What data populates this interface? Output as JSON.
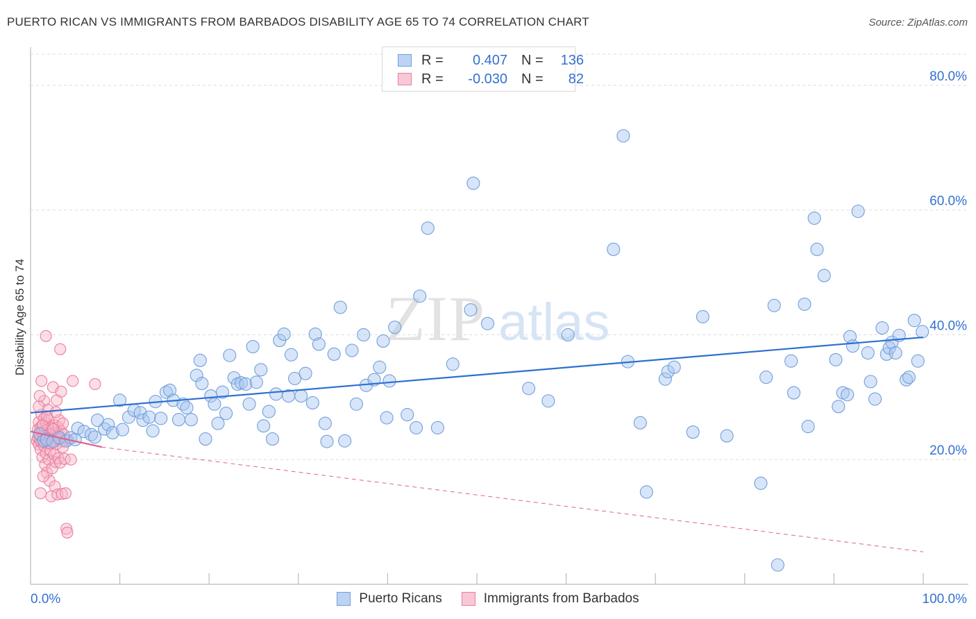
{
  "title": "PUERTO RICAN VS IMMIGRANTS FROM BARBADOS DISABILITY AGE 65 TO 74 CORRELATION CHART",
  "source": "Source: ZipAtlas.com",
  "watermark": {
    "zip": "ZIP",
    "atlas": "atlas"
  },
  "legend": {
    "r_label": "R =",
    "n_label": "N =",
    "rows": [
      {
        "r": "0.407",
        "n": "136"
      },
      {
        "r": "-0.030",
        "n": "82"
      }
    ]
  },
  "bottom_legend": [
    "Puerto Ricans",
    "Immigrants from Barbados"
  ],
  "colors": {
    "blue_fill": "#a8c6f0",
    "blue_stroke": "#6f9fdc",
    "blue_line": "#2d6fd0",
    "pink_fill": "#f6b6c8",
    "pink_stroke": "#ea7fa0",
    "pink_line": "#e2628a",
    "axis_label": "#3370d0",
    "grid": "#dcdcdc"
  },
  "chart_data": {
    "type": "scatter",
    "title": "PUERTO RICAN VS IMMIGRANTS FROM BARBADOS DISABILITY AGE 65 TO 74 CORRELATION CHART",
    "xlabel": "",
    "ylabel": "Disability Age 65 to 74",
    "xlim": [
      0,
      100
    ],
    "ylim": [
      0,
      85
    ],
    "x_tick_labels": [
      "0.0%",
      "100.0%"
    ],
    "y_ticks": [
      20,
      40,
      60,
      80
    ],
    "y_tick_labels": [
      "20.0%",
      "40.0%",
      "60.0%",
      "80.0%"
    ],
    "grid": true,
    "legend_position": "top-center",
    "series": [
      {
        "name": "Puerto Ricans",
        "color": "#a8c6f0",
        "trend": {
          "x": [
            0,
            100
          ],
          "y": [
            27.5,
            39.6
          ],
          "style": "solid"
        },
        "points": [
          [
            1.0,
            24.1
          ],
          [
            1.5,
            23.0
          ],
          [
            1.8,
            23.2
          ],
          [
            2.5,
            22.9
          ],
          [
            3.2,
            23.5
          ],
          [
            4.0,
            23.0
          ],
          [
            4.5,
            23.5
          ],
          [
            5.0,
            23.2
          ],
          [
            5.3,
            25.0
          ],
          [
            6.0,
            24.5
          ],
          [
            6.8,
            24.0
          ],
          [
            7.2,
            23.6
          ],
          [
            7.5,
            26.3
          ],
          [
            8.3,
            24.9
          ],
          [
            8.7,
            25.6
          ],
          [
            9.2,
            24.3
          ],
          [
            10.0,
            29.5
          ],
          [
            10.3,
            24.8
          ],
          [
            11.0,
            26.8
          ],
          [
            11.6,
            27.9
          ],
          [
            12.3,
            27.5
          ],
          [
            12.6,
            26.3
          ],
          [
            13.3,
            26.8
          ],
          [
            13.7,
            24.6
          ],
          [
            14.0,
            29.3
          ],
          [
            14.6,
            26.6
          ],
          [
            15.2,
            30.8
          ],
          [
            15.6,
            31.1
          ],
          [
            16.0,
            29.5
          ],
          [
            16.6,
            26.4
          ],
          [
            17.1,
            28.9
          ],
          [
            17.5,
            28.3
          ],
          [
            18.0,
            26.4
          ],
          [
            18.6,
            33.5
          ],
          [
            19.0,
            35.9
          ],
          [
            19.2,
            32.2
          ],
          [
            19.6,
            23.3
          ],
          [
            20.2,
            30.2
          ],
          [
            20.6,
            28.9
          ],
          [
            21.0,
            25.8
          ],
          [
            21.5,
            30.8
          ],
          [
            21.9,
            27.4
          ],
          [
            22.3,
            36.7
          ],
          [
            22.8,
            33.1
          ],
          [
            23.2,
            32.1
          ],
          [
            23.6,
            32.3
          ],
          [
            24.1,
            32.1
          ],
          [
            24.5,
            28.9
          ],
          [
            24.9,
            38.1
          ],
          [
            25.3,
            32.4
          ],
          [
            25.8,
            34.4
          ],
          [
            26.1,
            25.4
          ],
          [
            26.7,
            27.7
          ],
          [
            27.1,
            23.3
          ],
          [
            27.5,
            30.5
          ],
          [
            27.9,
            39.1
          ],
          [
            28.4,
            40.1
          ],
          [
            28.9,
            30.2
          ],
          [
            29.2,
            36.8
          ],
          [
            29.6,
            33.0
          ],
          [
            30.3,
            30.2
          ],
          [
            30.8,
            33.8
          ],
          [
            31.6,
            29.1
          ],
          [
            31.9,
            40.1
          ],
          [
            32.3,
            38.5
          ],
          [
            33.0,
            25.8
          ],
          [
            33.2,
            22.9
          ],
          [
            34.0,
            36.9
          ],
          [
            34.7,
            44.4
          ],
          [
            35.2,
            23.0
          ],
          [
            36.0,
            37.5
          ],
          [
            36.5,
            28.9
          ],
          [
            37.3,
            40.0
          ],
          [
            37.6,
            31.9
          ],
          [
            38.5,
            32.8
          ],
          [
            39.1,
            34.8
          ],
          [
            39.5,
            39.0
          ],
          [
            39.9,
            26.7
          ],
          [
            40.2,
            32.6
          ],
          [
            40.8,
            41.2
          ],
          [
            42.2,
            27.2
          ],
          [
            43.2,
            25.1
          ],
          [
            43.6,
            46.2
          ],
          [
            44.5,
            57.1
          ],
          [
            45.6,
            25.1
          ],
          [
            47.3,
            35.3
          ],
          [
            49.3,
            44.0
          ],
          [
            49.6,
            64.3
          ],
          [
            51.2,
            41.8
          ],
          [
            55.8,
            31.4
          ],
          [
            58.0,
            29.4
          ],
          [
            60.2,
            40.0
          ],
          [
            65.3,
            53.7
          ],
          [
            66.4,
            71.9
          ],
          [
            66.9,
            35.7
          ],
          [
            68.3,
            25.9
          ],
          [
            69.0,
            14.8
          ],
          [
            71.1,
            32.9
          ],
          [
            71.4,
            34.1
          ],
          [
            72.1,
            34.8
          ],
          [
            74.2,
            24.4
          ],
          [
            75.3,
            42.9
          ],
          [
            78.0,
            23.8
          ],
          [
            81.8,
            16.2
          ],
          [
            82.4,
            33.2
          ],
          [
            83.3,
            44.7
          ],
          [
            83.7,
            3.1
          ],
          [
            85.2,
            35.8
          ],
          [
            85.5,
            30.7
          ],
          [
            86.7,
            44.9
          ],
          [
            87.1,
            25.3
          ],
          [
            87.8,
            58.7
          ],
          [
            88.1,
            53.7
          ],
          [
            88.9,
            49.5
          ],
          [
            90.2,
            36.0
          ],
          [
            90.5,
            28.5
          ],
          [
            91.0,
            30.7
          ],
          [
            91.5,
            30.4
          ],
          [
            91.8,
            39.7
          ],
          [
            92.1,
            38.2
          ],
          [
            92.7,
            59.8
          ],
          [
            93.8,
            37.1
          ],
          [
            94.1,
            32.5
          ],
          [
            94.6,
            29.7
          ],
          [
            95.4,
            41.1
          ],
          [
            95.9,
            36.9
          ],
          [
            96.2,
            37.9
          ],
          [
            96.5,
            38.8
          ],
          [
            96.9,
            37.1
          ],
          [
            97.3,
            39.9
          ],
          [
            98.1,
            32.8
          ],
          [
            98.4,
            33.2
          ],
          [
            99.0,
            42.3
          ],
          [
            99.4,
            35.8
          ],
          [
            99.9,
            40.5
          ]
        ]
      },
      {
        "name": "Immigrants from Barbados",
        "color": "#f6b6c8",
        "trend": {
          "x": [
            0,
            8
          ],
          "y": [
            24.5,
            22.0
          ],
          "style": "solid",
          "extended": {
            "x": [
              8,
              100
            ],
            "y": [
              22.0,
              5.2
            ],
            "style": "dashed"
          }
        },
        "points": [
          [
            0.1,
            23.0
          ],
          [
            0.2,
            23.5
          ],
          [
            0.2,
            24.8
          ],
          [
            0.3,
            26.0
          ],
          [
            0.3,
            22.4
          ],
          [
            0.4,
            23.2
          ],
          [
            0.4,
            24.2
          ],
          [
            0.5,
            25.2
          ],
          [
            0.5,
            21.6
          ],
          [
            0.6,
            27.2
          ],
          [
            0.6,
            22.8
          ],
          [
            0.7,
            24.4
          ],
          [
            0.7,
            20.4
          ],
          [
            0.8,
            25.6
          ],
          [
            0.8,
            23.6
          ],
          [
            0.9,
            26.6
          ],
          [
            0.9,
            22.2
          ],
          [
            1.0,
            24.6
          ],
          [
            1.0,
            19.2
          ],
          [
            1.1,
            25.9
          ],
          [
            1.1,
            21.0
          ],
          [
            1.2,
            23.4
          ],
          [
            1.2,
            17.9
          ],
          [
            1.3,
            24.8
          ],
          [
            1.3,
            22.6
          ],
          [
            1.4,
            26.4
          ],
          [
            1.4,
            20.0
          ],
          [
            1.5,
            24.0
          ],
          [
            1.5,
            16.6
          ],
          [
            1.6,
            23.1
          ],
          [
            1.6,
            21.4
          ],
          [
            1.7,
            25.1
          ],
          [
            1.7,
            14.1
          ],
          [
            1.8,
            22.9
          ],
          [
            1.8,
            18.6
          ],
          [
            1.9,
            24.3
          ],
          [
            1.9,
            31.6
          ],
          [
            2.0,
            23.3
          ],
          [
            2.0,
            20.8
          ],
          [
            2.1,
            25.5
          ],
          [
            2.1,
            15.7
          ],
          [
            2.2,
            24.2
          ],
          [
            2.2,
            19.6
          ],
          [
            2.3,
            22.5
          ],
          [
            2.3,
            29.5
          ],
          [
            2.4,
            23.9
          ],
          [
            2.4,
            14.4
          ],
          [
            2.5,
            25.2
          ],
          [
            2.5,
            20.2
          ],
          [
            2.6,
            23.8
          ],
          [
            2.6,
            26.3
          ],
          [
            2.7,
            37.7
          ],
          [
            2.7,
            19.5
          ],
          [
            2.8,
            24.5
          ],
          [
            2.8,
            30.9
          ],
          [
            2.9,
            22.9
          ],
          [
            2.9,
            14.5
          ],
          [
            3.0,
            25.8
          ],
          [
            3.1,
            24.0
          ],
          [
            3.2,
            20.1
          ],
          [
            3.3,
            14.6
          ],
          [
            3.4,
            8.9
          ],
          [
            3.5,
            8.3
          ],
          [
            1.1,
            39.8
          ],
          [
            0.6,
            32.6
          ],
          [
            0.9,
            29.4
          ],
          [
            1.3,
            28.0
          ],
          [
            0.3,
            28.5
          ],
          [
            0.4,
            30.2
          ],
          [
            0.8,
            17.3
          ],
          [
            1.6,
            22.6
          ],
          [
            2.2,
            27.6
          ],
          [
            3.0,
            22.0
          ],
          [
            3.6,
            23.1
          ],
          [
            3.9,
            20.0
          ],
          [
            4.1,
            32.6
          ],
          [
            6.6,
            32.1
          ],
          [
            0.5,
            14.6
          ],
          [
            1.9,
            24.9
          ],
          [
            2.6,
            23.3
          ],
          [
            1.2,
            26.9
          ],
          [
            0.7,
            25.5
          ]
        ]
      }
    ]
  }
}
